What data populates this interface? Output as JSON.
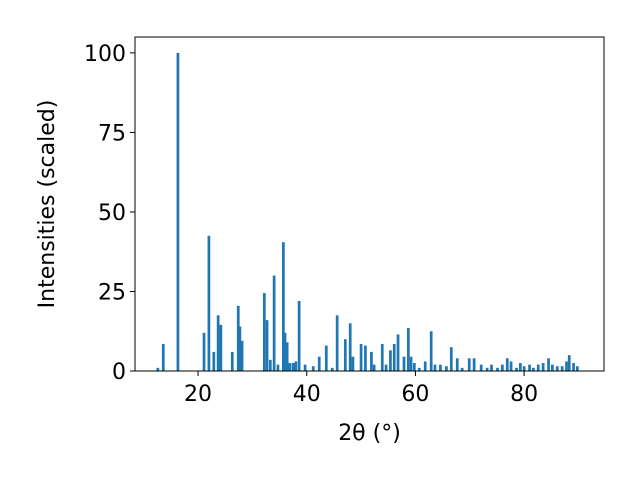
{
  "chart_data": {
    "type": "bar",
    "xlabel": "2θ (°)",
    "ylabel": "Intensities (scaled)",
    "color": "#1f77b4",
    "bar_width": 0.5,
    "x": [
      12.6,
      13.6,
      16.3,
      21.1,
      22.0,
      22.9,
      23.7,
      24.2,
      26.3,
      27.4,
      27.7,
      28.1,
      32.2,
      32.7,
      33.3,
      34.0,
      34.7,
      35.7,
      36.0,
      36.4,
      36.9,
      37.5,
      38.0,
      38.6,
      39.7,
      41.2,
      42.3,
      43.6,
      44.7,
      45.6,
      47.1,
      48.0,
      48.5,
      50.0,
      50.8,
      51.9,
      52.4,
      53.9,
      54.6,
      55.4,
      56.1,
      56.8,
      57.9,
      58.7,
      59.2,
      59.8,
      60.7,
      61.8,
      62.9,
      63.6,
      64.6,
      65.7,
      66.6,
      67.7,
      68.6,
      69.9,
      70.8,
      72.1,
      73.2,
      74.0,
      75.1,
      76.0,
      76.9,
      77.6,
      78.6,
      79.3,
      80.0,
      81.0,
      81.7,
      82.6,
      83.5,
      84.5,
      85.2,
      86.1,
      87.0,
      87.8,
      88.3,
      89.1,
      89.8
    ],
    "values": [
      1,
      8.5,
      100,
      12,
      42.5,
      6,
      17.5,
      14.5,
      6,
      20.5,
      14,
      9.5,
      24.5,
      16,
      3.5,
      30,
      2,
      40.5,
      12,
      9,
      2.5,
      2.5,
      3,
      22,
      2,
      1.5,
      4.5,
      8,
      1,
      17.5,
      10,
      15,
      4.5,
      8.5,
      8,
      6,
      2,
      8.5,
      2,
      6.5,
      8.5,
      11.5,
      4.5,
      13.5,
      4.5,
      2.5,
      1,
      3,
      12.5,
      2,
      2,
      1.5,
      7.5,
      4,
      1,
      4,
      4,
      2,
      1,
      2,
      1,
      2,
      4,
      3,
      1,
      2.5,
      1.5,
      2,
      1,
      2,
      2.5,
      4,
      2,
      1.5,
      1.5,
      3,
      5,
      2.5,
      1.5
    ],
    "xlim": [
      8.4,
      94.7
    ],
    "ylim": [
      0,
      105
    ],
    "xticks": [
      20,
      40,
      60,
      80
    ],
    "yticks": [
      0,
      25,
      50,
      75,
      100
    ],
    "grid": false
  }
}
